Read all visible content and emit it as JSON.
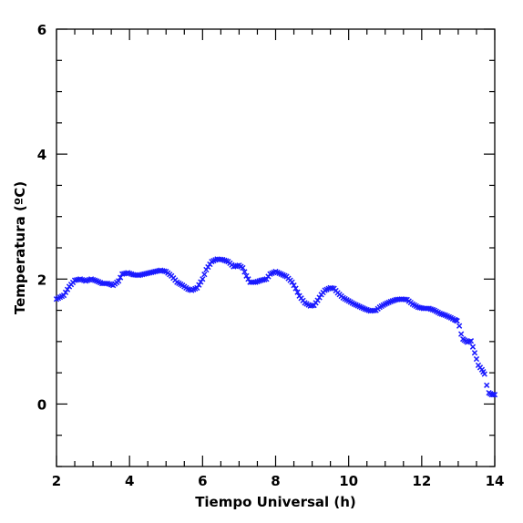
{
  "chart_data": {
    "type": "scatter",
    "xlabel": "Tiempo Universal (h)",
    "ylabel": "Temperatura (ºC)",
    "xlim": [
      2,
      14
    ],
    "ylim": [
      -1,
      6
    ],
    "x_ticks": [
      2,
      4,
      6,
      8,
      10,
      12,
      14
    ],
    "y_ticks": [
      0,
      2,
      4,
      6
    ],
    "marker": "x",
    "series_color": "#1a1aff",
    "points": [
      [
        2.0,
        1.68
      ],
      [
        2.2,
        1.74
      ],
      [
        2.35,
        1.88
      ],
      [
        2.5,
        1.98
      ],
      [
        2.65,
        2.0
      ],
      [
        2.8,
        1.97
      ],
      [
        2.95,
        2.0
      ],
      [
        3.1,
        1.97
      ],
      [
        3.25,
        1.93
      ],
      [
        3.4,
        1.93
      ],
      [
        3.55,
        1.9
      ],
      [
        3.7,
        1.97
      ],
      [
        3.8,
        2.08
      ],
      [
        3.95,
        2.1
      ],
      [
        4.1,
        2.07
      ],
      [
        4.25,
        2.06
      ],
      [
        4.4,
        2.08
      ],
      [
        4.55,
        2.1
      ],
      [
        4.7,
        2.12
      ],
      [
        4.85,
        2.14
      ],
      [
        5.0,
        2.12
      ],
      [
        5.15,
        2.05
      ],
      [
        5.3,
        1.95
      ],
      [
        5.45,
        1.9
      ],
      [
        5.6,
        1.84
      ],
      [
        5.7,
        1.82
      ],
      [
        5.85,
        1.86
      ],
      [
        6.0,
        2.0
      ],
      [
        6.1,
        2.15
      ],
      [
        6.25,
        2.28
      ],
      [
        6.4,
        2.32
      ],
      [
        6.55,
        2.31
      ],
      [
        6.7,
        2.28
      ],
      [
        6.85,
        2.2
      ],
      [
        7.0,
        2.22
      ],
      [
        7.1,
        2.18
      ],
      [
        7.2,
        2.05
      ],
      [
        7.3,
        1.95
      ],
      [
        7.45,
        1.95
      ],
      [
        7.6,
        1.98
      ],
      [
        7.75,
        2.0
      ],
      [
        7.85,
        2.08
      ],
      [
        8.0,
        2.12
      ],
      [
        8.15,
        2.08
      ],
      [
        8.3,
        2.04
      ],
      [
        8.45,
        1.95
      ],
      [
        8.55,
        1.85
      ],
      [
        8.65,
        1.73
      ],
      [
        8.8,
        1.62
      ],
      [
        8.95,
        1.57
      ],
      [
        9.05,
        1.58
      ],
      [
        9.15,
        1.66
      ],
      [
        9.25,
        1.75
      ],
      [
        9.35,
        1.82
      ],
      [
        9.5,
        1.86
      ],
      [
        9.6,
        1.85
      ],
      [
        9.7,
        1.78
      ],
      [
        9.85,
        1.7
      ],
      [
        10.0,
        1.65
      ],
      [
        10.15,
        1.6
      ],
      [
        10.3,
        1.56
      ],
      [
        10.45,
        1.52
      ],
      [
        10.6,
        1.49
      ],
      [
        10.75,
        1.5
      ],
      [
        10.85,
        1.55
      ],
      [
        11.0,
        1.6
      ],
      [
        11.15,
        1.64
      ],
      [
        11.3,
        1.67
      ],
      [
        11.45,
        1.68
      ],
      [
        11.6,
        1.67
      ],
      [
        11.75,
        1.6
      ],
      [
        11.9,
        1.55
      ],
      [
        12.05,
        1.53
      ],
      [
        12.2,
        1.53
      ],
      [
        12.35,
        1.5
      ],
      [
        12.5,
        1.45
      ],
      [
        12.65,
        1.42
      ],
      [
        12.8,
        1.38
      ],
      [
        12.9,
        1.35
      ],
      [
        12.97,
        1.33
      ],
      [
        13.03,
        1.25
      ],
      [
        13.08,
        1.12
      ],
      [
        13.13,
        1.04
      ],
      [
        13.25,
        0.99
      ],
      [
        13.35,
        1.01
      ],
      [
        13.45,
        0.82
      ],
      [
        13.55,
        0.62
      ],
      [
        13.65,
        0.55
      ],
      [
        13.72,
        0.48
      ],
      [
        13.78,
        0.3
      ],
      [
        13.84,
        0.18
      ],
      [
        13.92,
        0.15
      ],
      [
        14.0,
        0.15
      ]
    ]
  }
}
